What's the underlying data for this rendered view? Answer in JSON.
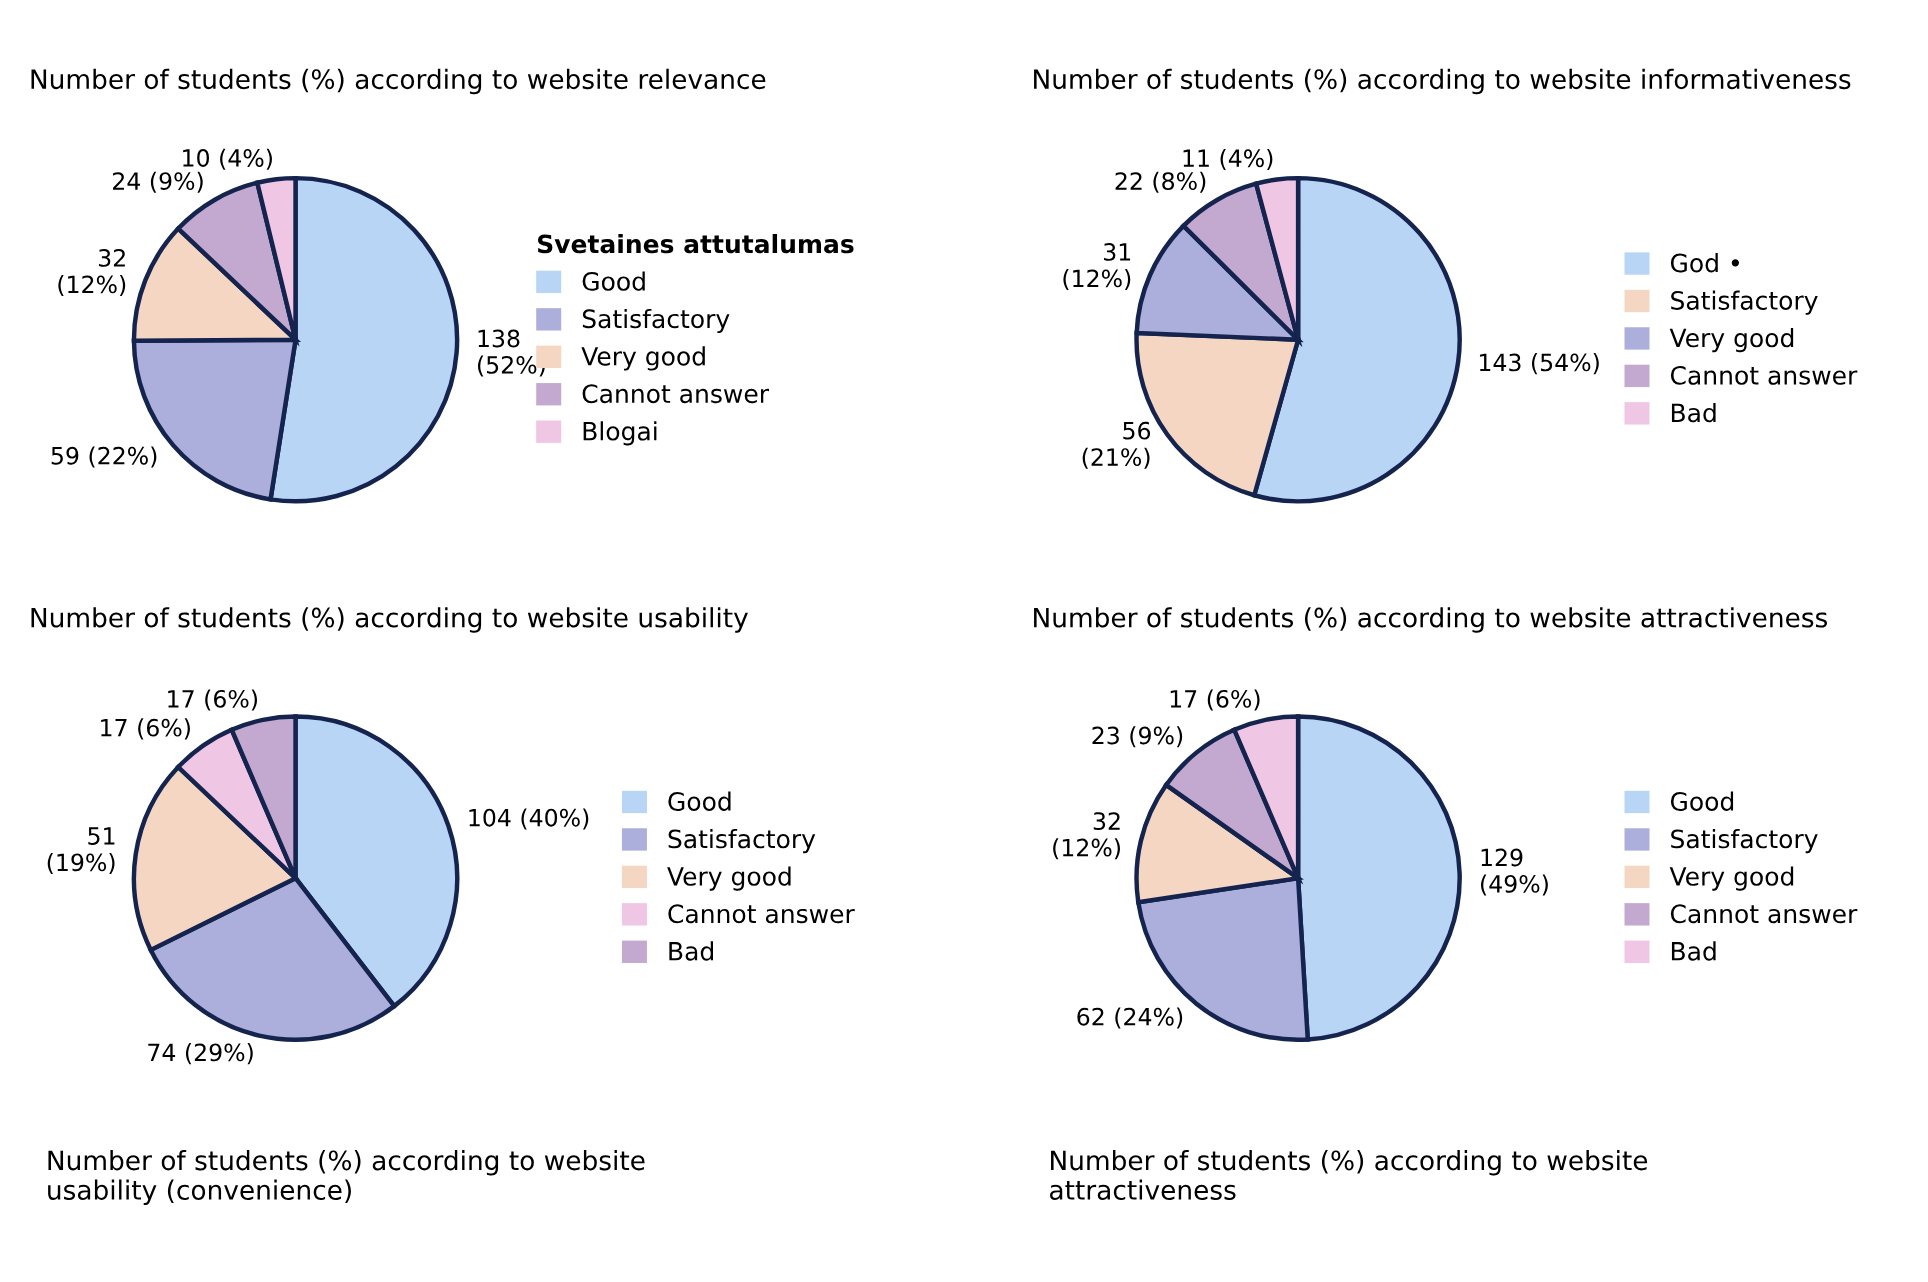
{
  "chart_data": [
    {
      "type": "pie",
      "title": "Number of students (%) according to website relevance",
      "legend_title": "Svetaines attutalumas",
      "legend": "right",
      "categories": [
        "Good",
        "Satisfactory",
        "Very good",
        "Cannot answer",
        "Blogai"
      ],
      "values": [
        138,
        59,
        32,
        24,
        10
      ],
      "value_labels": [
        "138\n(52%)",
        "59 (22%)",
        "32\n(12%)",
        "24 (9%)",
        "10 (4%)"
      ],
      "colors": [
        "#b9d5f6",
        "#acaedb",
        "#f5d6c3",
        "#c3a9cf",
        "#efc6e3"
      ]
    },
    {
      "type": "pie",
      "title": "Number of students (%) according to website informativeness",
      "legend": "right",
      "categories": [
        "God •",
        "Satisfactory",
        "Very good",
        "Cannot answer",
        "Bad"
      ],
      "values": [
        143,
        56,
        31,
        22,
        11
      ],
      "value_labels": [
        "143 (54%)",
        "56\n(21%)",
        "31\n(12%)",
        "22 (8%)",
        "11 (4%)"
      ],
      "colors": [
        "#b9d5f6",
        "#f5d6c3",
        "#acaedb",
        "#c3a9cf",
        "#efc6e3"
      ]
    },
    {
      "type": "pie",
      "title": "Number of students (%) according to website usability",
      "legend": "right",
      "categories": [
        "Good",
        "Satisfactory",
        "Very good",
        "Cannot answer",
        "Bad"
      ],
      "values": [
        104,
        74,
        51,
        17,
        17
      ],
      "value_labels": [
        "104 (40%)",
        "74 (29%)",
        "51\n(19%)",
        "17 (6%)",
        "17 (6%)"
      ],
      "colors": [
        "#b9d5f6",
        "#acaedb",
        "#f5d6c3",
        "#efc6e3",
        "#c3a9cf"
      ],
      "annotations": [
        "Number of students (%) according to website\nusability (convenience)"
      ]
    },
    {
      "type": "pie",
      "title": "Number of students (%) according to website attractiveness",
      "legend": "right",
      "categories": [
        "Good",
        "Satisfactory",
        "Very good",
        "Cannot answer",
        "Bad"
      ],
      "values": [
        129,
        62,
        32,
        23,
        17
      ],
      "value_labels": [
        "129\n(49%)",
        "62 (24%)",
        "32\n(12%)",
        "23 (9%)",
        "17 (6%)"
      ],
      "colors": [
        "#b9d5f6",
        "#acaedb",
        "#f5d6c3",
        "#c3a9cf",
        "#efc6e3"
      ],
      "annotations": [
        "Number of students (%) according to website\nattractiveness"
      ]
    }
  ]
}
